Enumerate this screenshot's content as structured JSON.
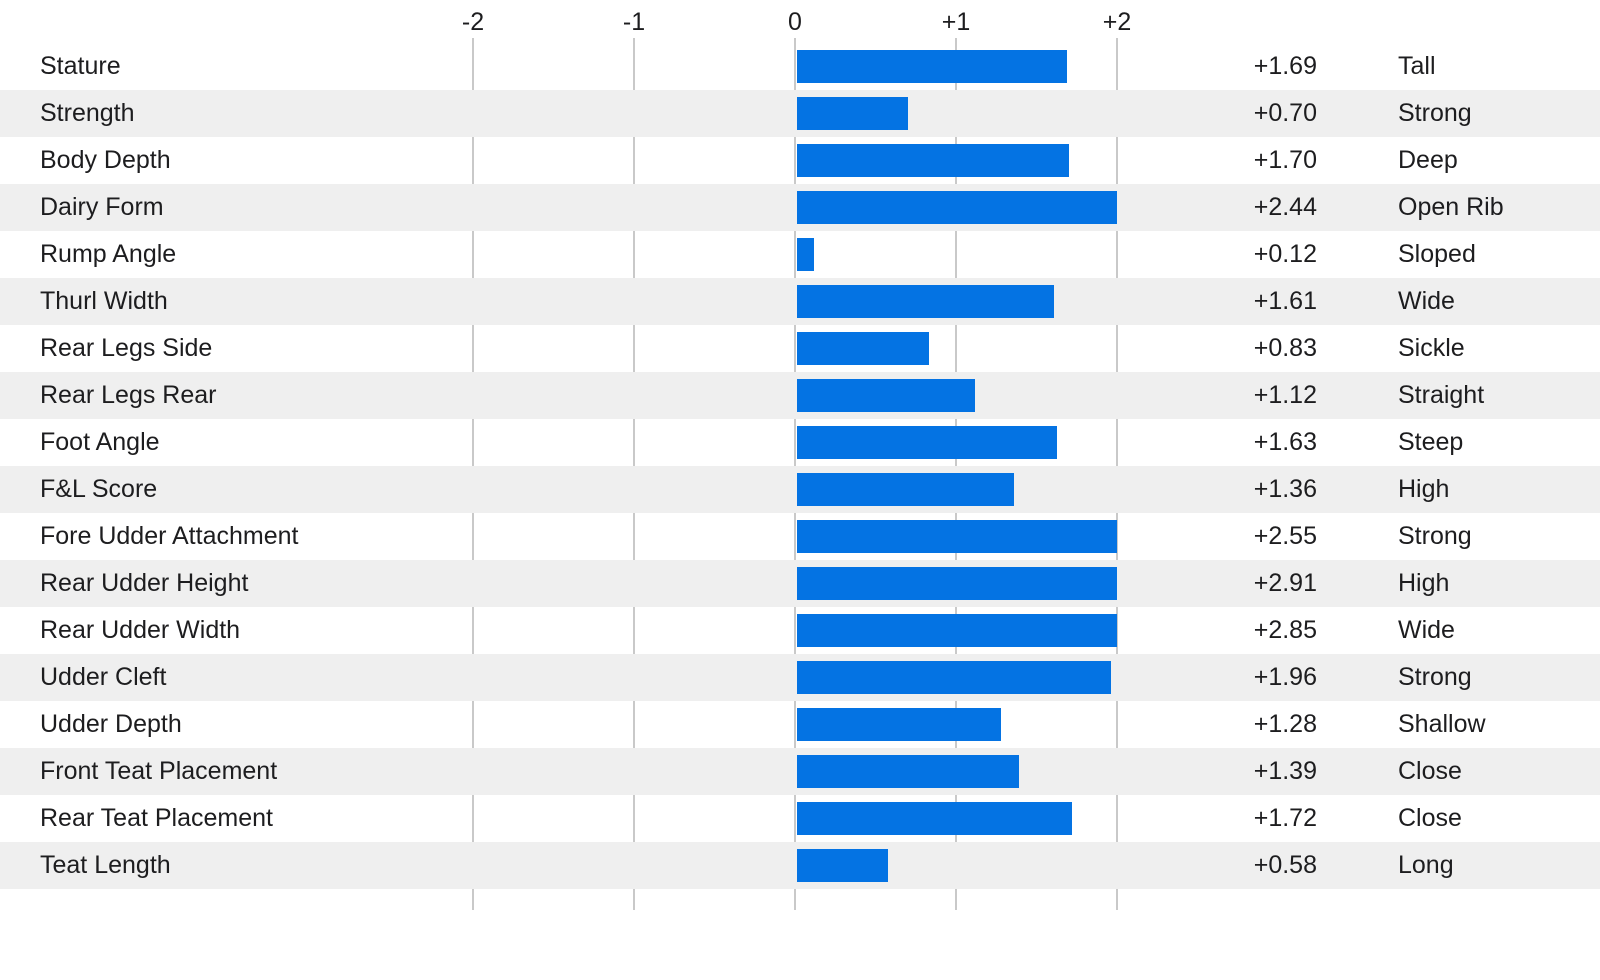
{
  "chart_data": {
    "type": "bar",
    "orientation": "horizontal",
    "axis_ticks": [
      "-2",
      "-1",
      "0",
      "+1",
      "+2"
    ],
    "axis_range": [
      -2,
      2
    ],
    "bar_origin": 0,
    "bar_clip_max": 2,
    "grid": true,
    "categories": [
      "Stature",
      "Strength",
      "Body Depth",
      "Dairy Form",
      "Rump Angle",
      "Thurl Width",
      "Rear Legs Side",
      "Rear Legs Rear",
      "Foot Angle",
      "F&L Score",
      "Fore Udder Attachment",
      "Rear Udder Height",
      "Rear Udder Width",
      "Udder Cleft",
      "Udder Depth",
      "Front Teat Placement",
      "Rear Teat Placement",
      "Teat Length"
    ],
    "values": [
      1.69,
      0.7,
      1.7,
      2.44,
      0.12,
      1.61,
      0.83,
      1.12,
      1.63,
      1.36,
      2.55,
      2.91,
      2.85,
      1.96,
      1.28,
      1.39,
      1.72,
      0.58
    ],
    "rows": [
      {
        "trait": "Stature",
        "value": 1.69,
        "value_label": "+1.69",
        "descriptor": "Tall"
      },
      {
        "trait": "Strength",
        "value": 0.7,
        "value_label": "+0.70",
        "descriptor": "Strong"
      },
      {
        "trait": "Body Depth",
        "value": 1.7,
        "value_label": "+1.70",
        "descriptor": "Deep"
      },
      {
        "trait": "Dairy Form",
        "value": 2.44,
        "value_label": "+2.44",
        "descriptor": "Open Rib"
      },
      {
        "trait": "Rump Angle",
        "value": 0.12,
        "value_label": "+0.12",
        "descriptor": "Sloped"
      },
      {
        "trait": "Thurl Width",
        "value": 1.61,
        "value_label": "+1.61",
        "descriptor": "Wide"
      },
      {
        "trait": "Rear Legs Side",
        "value": 0.83,
        "value_label": "+0.83",
        "descriptor": "Sickle"
      },
      {
        "trait": "Rear Legs Rear",
        "value": 1.12,
        "value_label": "+1.12",
        "descriptor": "Straight"
      },
      {
        "trait": "Foot Angle",
        "value": 1.63,
        "value_label": "+1.63",
        "descriptor": "Steep"
      },
      {
        "trait": "F&L Score",
        "value": 1.36,
        "value_label": "+1.36",
        "descriptor": "High"
      },
      {
        "trait": "Fore Udder Attachment",
        "value": 2.55,
        "value_label": "+2.55",
        "descriptor": "Strong"
      },
      {
        "trait": "Rear Udder Height",
        "value": 2.91,
        "value_label": "+2.91",
        "descriptor": "High"
      },
      {
        "trait": "Rear Udder Width",
        "value": 2.85,
        "value_label": "+2.85",
        "descriptor": "Wide"
      },
      {
        "trait": "Udder Cleft",
        "value": 1.96,
        "value_label": "+1.96",
        "descriptor": "Strong"
      },
      {
        "trait": "Udder Depth",
        "value": 1.28,
        "value_label": "+1.28",
        "descriptor": "Shallow"
      },
      {
        "trait": "Front Teat Placement",
        "value": 1.39,
        "value_label": "+1.39",
        "descriptor": "Close"
      },
      {
        "trait": "Rear Teat Placement",
        "value": 1.72,
        "value_label": "+1.72",
        "descriptor": "Close"
      },
      {
        "trait": "Teat Length",
        "value": 0.58,
        "value_label": "+0.58",
        "descriptor": "Long"
      }
    ],
    "colors": {
      "bar": "#0473e3",
      "row_alt": "#efefef",
      "gridline": "#c9c9c9",
      "text": "#1d1d1f"
    }
  }
}
